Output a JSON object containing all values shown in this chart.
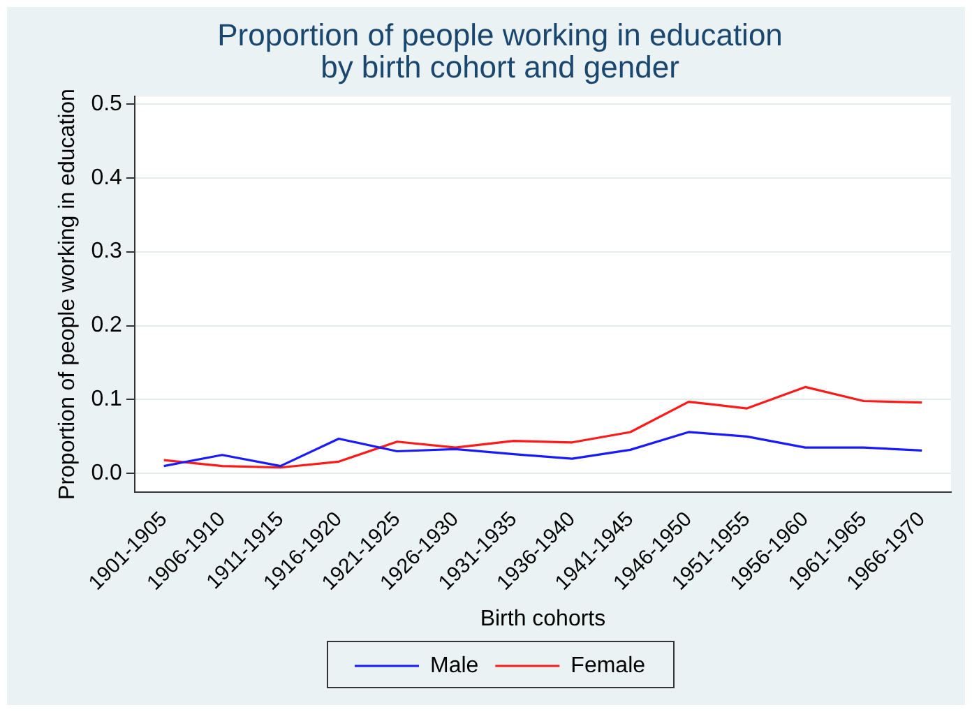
{
  "chart_data": {
    "type": "line",
    "title": [
      "Proportion of people working in education",
      "by birth cohort and gender"
    ],
    "xlabel": "Birth cohorts",
    "ylabel": "Proportion of people working in education",
    "categories": [
      "1901-1905",
      "1906-1910",
      "1911-1915",
      "1916-1920",
      "1921-1925",
      "1926-1930",
      "1931-1935",
      "1936-1940",
      "1941-1945",
      "1946-1950",
      "1951-1955",
      "1956-1960",
      "1961-1965",
      "1966-1970"
    ],
    "series": [
      {
        "name": "Male",
        "color": "#1a1aff",
        "values": [
          0.01,
          0.025,
          0.01,
          0.047,
          0.03,
          0.033,
          0.026,
          0.02,
          0.032,
          0.056,
          0.05,
          0.035,
          0.035,
          0.031
        ]
      },
      {
        "name": "Female",
        "color": "#ff1a1a",
        "values": [
          0.018,
          0.01,
          0.008,
          0.016,
          0.043,
          0.035,
          0.044,
          0.042,
          0.056,
          0.097,
          0.088,
          0.117,
          0.098,
          0.096
        ]
      }
    ],
    "ylim": [
      -0.025,
      0.51
    ],
    "yticks": [
      {
        "value": 0,
        "label": "0.0"
      },
      {
        "value": 0.1,
        "label": "0.1"
      },
      {
        "value": 0.2,
        "label": "0.2"
      },
      {
        "value": 0.3,
        "label": "0.3"
      },
      {
        "value": 0.4,
        "label": "0.4"
      },
      {
        "value": 0.5,
        "label": "0.5"
      }
    ],
    "grid": "y",
    "legend": "bottom",
    "marker": "none",
    "line_style": "solid"
  }
}
